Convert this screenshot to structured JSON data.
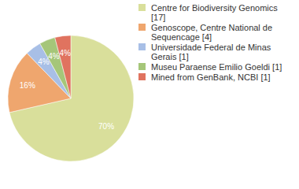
{
  "chart_data": {
    "type": "pie",
    "categories": [
      "Centre for Biodiversity Genomics [17]",
      "Genoscope, Centre National de Sequencage [4]",
      "Universidade Federal de Minas Gerais [1]",
      "Museu Paraense Emilio Goeldi [1]",
      "Mined from GenBank, NCBI [1]"
    ],
    "values": [
      70,
      16,
      4,
      4,
      4
    ],
    "value_labels": [
      "70%",
      "16%",
      "4%",
      "4%",
      "4%"
    ],
    "colors": [
      "#d9df9b",
      "#efa66e",
      "#a8bfe6",
      "#a5c679",
      "#e0735f"
    ],
    "data_labels": true,
    "legend": "right"
  }
}
